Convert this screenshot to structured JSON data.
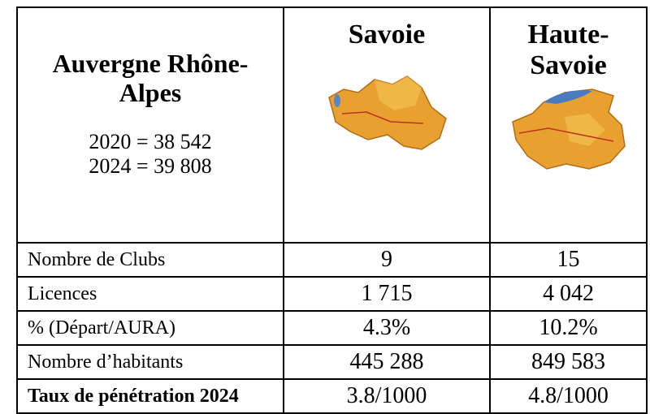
{
  "header": {
    "title": "Auvergne Rhône-Alpes",
    "stats": [
      "2020 = 38 542",
      "2024 = 39 808"
    ],
    "columns": [
      "Savoie",
      "Haute-Savoie"
    ]
  },
  "table": {
    "rows": [
      [
        "Nombre de Clubs",
        "9",
        "15"
      ],
      [
        "Licences",
        "1 715",
        "4 042"
      ],
      [
        "% (Départ/AURA)",
        "4.3%",
        "10.2%"
      ],
      [
        "Nombre d’habitants",
        "445 288",
        "849 583"
      ],
      [
        "Taux de pénétration 2024",
        "3.8/1000",
        "4.8/1000"
      ]
    ]
  }
}
